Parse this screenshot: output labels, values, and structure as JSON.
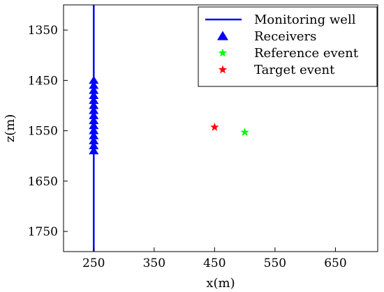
{
  "chart_data": {
    "type": "scatter",
    "xlabel": "x(m)",
    "ylabel": "z(m)",
    "xlim": [
      200,
      720
    ],
    "ylim": [
      1300,
      1790
    ],
    "y_inverted": true,
    "xticks": [
      250,
      350,
      450,
      550,
      650
    ],
    "yticks": [
      1350,
      1450,
      1550,
      1650,
      1750
    ],
    "grid": false,
    "legend_position": "top-right",
    "series": [
      {
        "name": "Monitoring well",
        "kind": "line",
        "color": "#0000ff",
        "x": [
          250,
          250
        ],
        "y": [
          1300,
          1790
        ]
      },
      {
        "name": "Receivers",
        "kind": "triangle",
        "color": "#0000ff",
        "x": [
          250,
          250,
          250,
          250,
          250,
          250,
          250,
          250,
          250,
          250,
          250,
          250,
          250,
          250,
          250
        ],
        "y": [
          1450,
          1460,
          1470,
          1480,
          1490,
          1500,
          1510,
          1520,
          1530,
          1540,
          1550,
          1560,
          1570,
          1580,
          1590
        ]
      },
      {
        "name": "Reference event",
        "kind": "star",
        "color": "#00ff00",
        "x": [
          500
        ],
        "y": [
          1553
        ]
      },
      {
        "name": "Target event",
        "kind": "star",
        "color": "#ff0000",
        "x": [
          450
        ],
        "y": [
          1543
        ]
      }
    ]
  }
}
